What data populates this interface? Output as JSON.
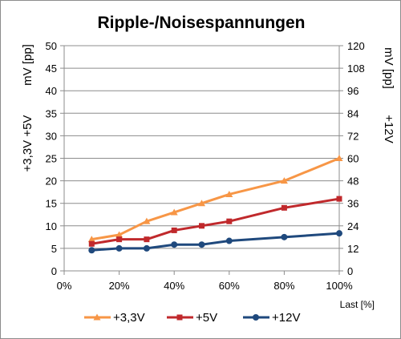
{
  "chart_data": {
    "type": "line",
    "title": "Ripple-/Noisespannungen",
    "xlabel": "Last [%]",
    "ylabel_left": [
      "+3,3V +5V",
      "mV [pp]"
    ],
    "ylabel_right": [
      "mV [pp]",
      "+12V"
    ],
    "x": [
      10,
      20,
      30,
      40,
      50,
      60,
      80,
      100
    ],
    "xlim": [
      0,
      100
    ],
    "xticks": [
      "0%",
      "20%",
      "40%",
      "60%",
      "80%",
      "100%"
    ],
    "ylim_left": [
      0,
      50
    ],
    "yticks_left": [
      "0",
      "5",
      "10",
      "15",
      "20",
      "25",
      "30",
      "35",
      "40",
      "45",
      "50"
    ],
    "ylim_right": [
      0,
      120
    ],
    "yticks_right": [
      "0",
      "12",
      "24",
      "36",
      "48",
      "60",
      "72",
      "84",
      "96",
      "108",
      "120"
    ],
    "grid": "horizontal",
    "legend_position": "bottom",
    "series": [
      {
        "name": "+3,3V",
        "axis": "left",
        "color": "#f79646",
        "marker": "triangle",
        "values": [
          7,
          8,
          11,
          13,
          15,
          17,
          20,
          25
        ]
      },
      {
        "name": "+5V",
        "axis": "left",
        "color": "#c0292c",
        "marker": "square",
        "values": [
          6,
          7,
          7,
          9,
          10,
          11,
          14,
          16
        ]
      },
      {
        "name": "+12V",
        "axis": "right",
        "color": "#1f497d",
        "marker": "circle",
        "values": [
          11,
          12,
          12,
          14,
          14,
          16,
          18,
          20
        ]
      }
    ]
  }
}
